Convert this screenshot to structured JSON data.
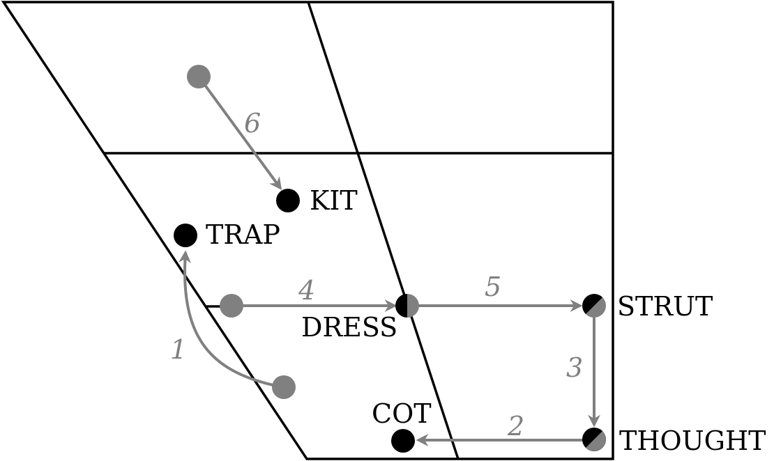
{
  "colors": {
    "outline": "#000000",
    "shift": "#808080",
    "target_vowel": "#000000",
    "origin_vowel": "#808080"
  },
  "vowels": {
    "kit": "KIT",
    "trap": "TRAP",
    "dress": "DRESS",
    "strut": "STRUT",
    "cot": "COT",
    "thought": "THOUGHT"
  },
  "steps": {
    "step1": "1",
    "step2": "2",
    "step3": "3",
    "step4": "4",
    "step5": "5",
    "step6": "6"
  }
}
